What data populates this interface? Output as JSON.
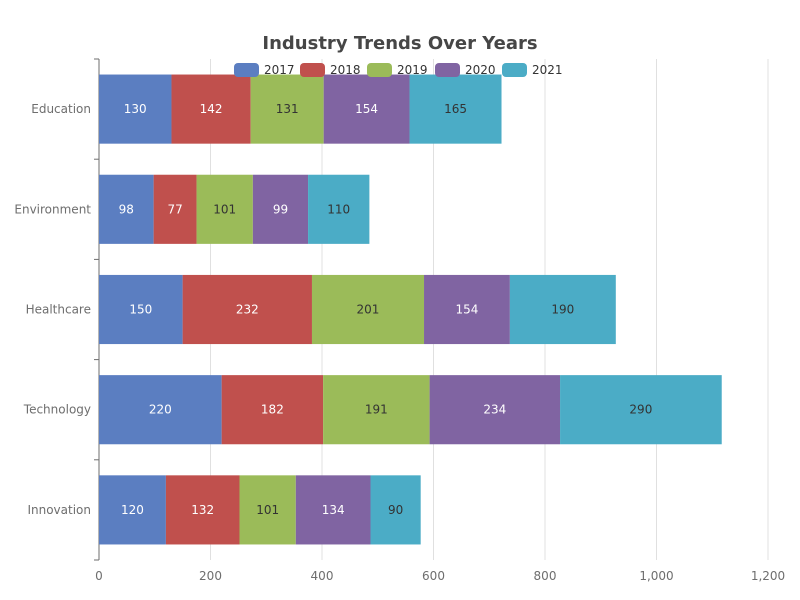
{
  "chart_data": {
    "type": "bar",
    "orientation": "horizontal",
    "stacked": true,
    "title": "Industry Trends Over Years",
    "categories": [
      "Education",
      "Environment",
      "Healthcare",
      "Technology",
      "Innovation"
    ],
    "series": [
      {
        "name": "2017",
        "color": "#5b7ec1",
        "values": [
          130,
          98,
          150,
          220,
          120
        ]
      },
      {
        "name": "2018",
        "color": "#c0504d",
        "values": [
          142,
          77,
          232,
          182,
          132
        ]
      },
      {
        "name": "2019",
        "color": "#9bbb59",
        "values": [
          131,
          101,
          201,
          191,
          101
        ]
      },
      {
        "name": "2020",
        "color": "#8064a2",
        "values": [
          154,
          99,
          154,
          234,
          134
        ]
      },
      {
        "name": "2021",
        "color": "#4bacc6",
        "values": [
          165,
          110,
          190,
          290,
          90
        ]
      }
    ],
    "xlim": [
      0,
      1200
    ],
    "x_ticks": [
      0,
      200,
      400,
      600,
      800,
      1000,
      1200
    ],
    "x_tick_labels": [
      "0",
      "200",
      "400",
      "600",
      "800",
      "1,000",
      "1,200"
    ],
    "legend_position": "top",
    "grid": true,
    "xlabel": "",
    "ylabel": ""
  }
}
